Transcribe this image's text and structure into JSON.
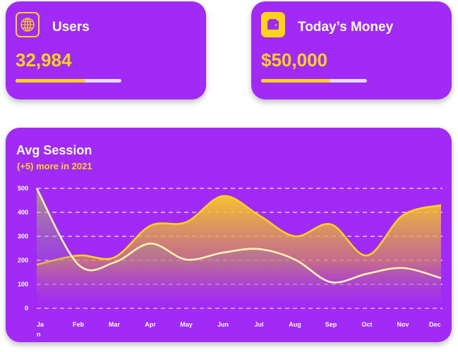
{
  "cards": [
    {
      "title": "Users",
      "value": "32,984",
      "icon": "globe-icon",
      "progress_percent": 66
    },
    {
      "title": "Today’s Money",
      "value": "$50,000",
      "icon": "wallet-icon",
      "progress_percent": 65
    }
  ],
  "colors": {
    "card_bg": "#a12af6",
    "accent": "#fdd31a",
    "track": "#e4dcef"
  },
  "chart": {
    "title": "Avg Session",
    "subtitle": "(+5) more in 2021"
  },
  "chart_data": {
    "type": "area",
    "categories": [
      "Jan",
      "Feb",
      "Mar",
      "Apr",
      "May",
      "Jun",
      "Jul",
      "Aug",
      "Sep",
      "Oct",
      "Nov",
      "Dec"
    ],
    "y_ticks": [
      0,
      100,
      200,
      300,
      400,
      500
    ],
    "ylim": [
      0,
      500
    ],
    "grid": true,
    "series": [
      {
        "color": "#fdd31a",
        "values": [
          182,
          220,
          212,
          344,
          359,
          468,
          388,
          300,
          350,
          220,
          388,
          430
        ]
      },
      {
        "color": "#fff3b0",
        "values": [
          500,
          182,
          191,
          270,
          203,
          232,
          247,
          203,
          109,
          144,
          168,
          126
        ]
      }
    ]
  }
}
